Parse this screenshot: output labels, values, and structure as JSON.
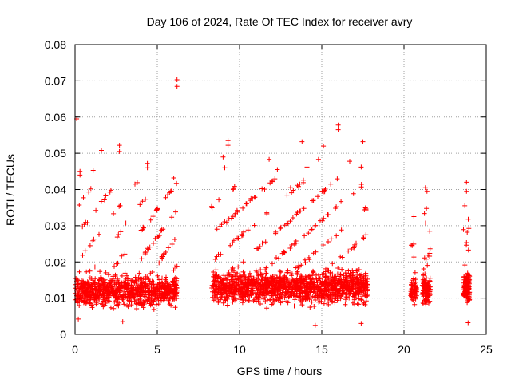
{
  "chart_data": {
    "type": "scatter",
    "title": "Day 106 of 2024, Rate Of TEC Index for receiver avry",
    "xlabel": "GPS time / hours",
    "ylabel": "ROTI / TECUs",
    "xlim": [
      0,
      25
    ],
    "ylim": [
      0,
      0.08
    ],
    "xticks": [
      "0",
      "5",
      "10",
      "15",
      "20",
      "25"
    ],
    "yticks": [
      "0",
      "0.01",
      "0.02",
      "0.03",
      "0.04",
      "0.05",
      "0.06",
      "0.07",
      "0.08"
    ],
    "grid": true,
    "marker": "+",
    "series_color": "#ff0000",
    "series": [
      {
        "segments": [
          {
            "x_range": [
              0.0,
              6.2
            ],
            "density": 900,
            "base": 0.012,
            "spread": 0.006,
            "tail": 0.03
          },
          {
            "x_range": [
              8.3,
              17.8
            ],
            "density": 1500,
            "base": 0.013,
            "spread": 0.006,
            "tail": 0.03
          },
          {
            "x_range": [
              20.4,
              20.8
            ],
            "density": 60,
            "base": 0.012,
            "spread": 0.005,
            "tail": 0.015
          },
          {
            "x_range": [
              21.1,
              21.6
            ],
            "density": 120,
            "base": 0.012,
            "spread": 0.006,
            "tail": 0.025
          },
          {
            "x_range": [
              23.6,
              24.0
            ],
            "density": 120,
            "base": 0.013,
            "spread": 0.006,
            "tail": 0.02
          }
        ],
        "points": [
          [
            0.1,
            0.0595
          ],
          [
            6.2,
            0.0703
          ],
          [
            6.2,
            0.0685
          ],
          [
            16.0,
            0.0578
          ],
          [
            16.0,
            0.0565
          ],
          [
            17.5,
            0.0532
          ],
          [
            9.3,
            0.0535
          ],
          [
            9.3,
            0.0522
          ],
          [
            13.8,
            0.0532
          ],
          [
            1.6,
            0.0508
          ],
          [
            2.7,
            0.0522
          ],
          [
            2.7,
            0.0505
          ],
          [
            4.4,
            0.0472
          ],
          [
            4.4,
            0.046
          ],
          [
            15.1,
            0.052
          ],
          [
            0.3,
            0.045
          ],
          [
            0.3,
            0.044
          ],
          [
            1.1,
            0.0453
          ],
          [
            11.8,
            0.0483
          ],
          [
            14.8,
            0.0483
          ],
          [
            16.7,
            0.0478
          ],
          [
            17.4,
            0.0462
          ],
          [
            23.8,
            0.042
          ],
          [
            23.8,
            0.0395
          ],
          [
            21.3,
            0.0405
          ],
          [
            21.4,
            0.0395
          ],
          [
            20.6,
            0.0325
          ],
          [
            20.5,
            0.0245
          ],
          [
            23.7,
            0.0355
          ],
          [
            9.0,
            0.049
          ],
          [
            9.1,
            0.046
          ],
          [
            6.0,
            0.0432
          ],
          [
            12.3,
            0.0455
          ],
          [
            13.1,
            0.0405
          ],
          [
            14.1,
            0.0462
          ],
          [
            0.2,
            0.0042
          ],
          [
            2.9,
            0.0035
          ],
          [
            14.6,
            0.0025
          ],
          [
            17.4,
            0.003
          ],
          [
            23.9,
            0.0032
          ]
        ]
      }
    ]
  }
}
